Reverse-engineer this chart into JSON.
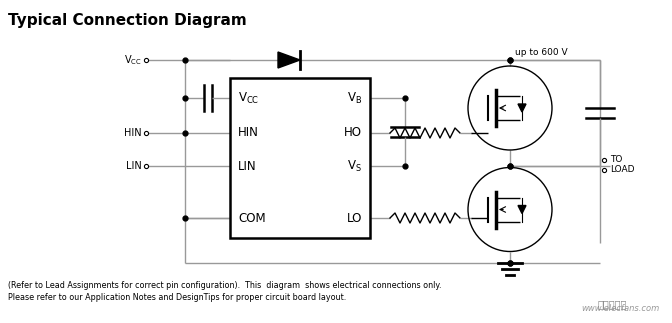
{
  "title": "Typical Connection Diagram",
  "bg_color": "#ffffff",
  "line_color": "#999999",
  "dark_color": "#000000",
  "footer_line1": "(Refer to Lead Assignments for correct pin configuration).  This  diagram  shows electrical connections only.",
  "footer_line2": "Please refer to our Application Notes and DesignTips for proper circuit board layout.",
  "watermark": "www.elecfans.com",
  "vcc_label": "V$_{CC}$",
  "hin_label": "HIN",
  "lin_label": "LIN",
  "ic_pins_left": [
    "V$_{CC}$",
    "HIN",
    "LIN",
    "COM"
  ],
  "ic_pins_right": [
    "V$_{B}$",
    "HO",
    "V$_{S}$",
    "LO"
  ],
  "up600_label": "up to 600 V",
  "to_load_label1": "TO",
  "to_load_label2": "LOAD"
}
